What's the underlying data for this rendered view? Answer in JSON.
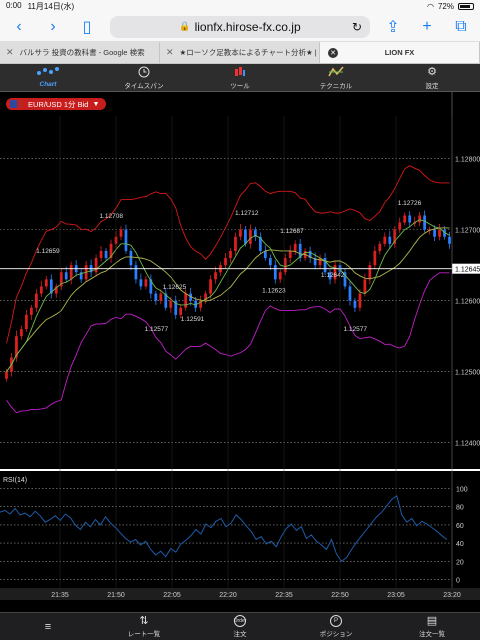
{
  "status": {
    "time": "0:00",
    "date": "11月14日(水)",
    "battery": "72%"
  },
  "browser": {
    "url": "lionfx.hirose-fx.co.jp",
    "tabs": [
      {
        "label": "バルサラ 投資の教科書 - Google 検索"
      },
      {
        "label": "★ローソク足教本によるチャート分析★ | F..."
      },
      {
        "label": "LION FX"
      }
    ]
  },
  "nav": {
    "items": [
      {
        "label": "Chart",
        "icon": "chart-icon"
      },
      {
        "label": "タイムスパン",
        "icon": "timespan-icon"
      },
      {
        "label": "ツール",
        "icon": "tool-icon"
      },
      {
        "label": "テクニカル",
        "icon": "technical-icon"
      },
      {
        "label": "設定",
        "icon": "gear-icon"
      }
    ]
  },
  "symbol": {
    "label": "EUR/USD 1分 Bid"
  },
  "chart_data": [
    {
      "type": "candlestick",
      "title": "EUR/USD 1分 Bid",
      "ylim": [
        1.1237,
        1.1286
      ],
      "y_ticks": [
        "1.12800",
        "1.12700",
        "1.12600",
        "1.12500",
        "1.12400"
      ],
      "current_price": "1.12645",
      "x_ticks": [
        "21:35",
        "21:50",
        "22:05",
        "22:20",
        "22:35",
        "22:50",
        "23:05",
        "23:20"
      ],
      "annotations": [
        "1.12708",
        "1.12659",
        "1.12625",
        "1.12591",
        "1.12577",
        "1.12712",
        "1.12687",
        "1.12623",
        "1.12642",
        "1.12577",
        "1.12726"
      ],
      "closes": [
        1.125,
        1.1252,
        1.1255,
        1.1256,
        1.1258,
        1.1259,
        1.1261,
        1.1262,
        1.1263,
        1.1261,
        1.1262,
        1.1264,
        1.1263,
        1.1265,
        1.1264,
        1.1263,
        1.1265,
        1.1264,
        1.1266,
        1.1267,
        1.1266,
        1.1268,
        1.1269,
        1.127,
        1.1267,
        1.1265,
        1.1263,
        1.1262,
        1.1263,
        1.1261,
        1.126,
        1.1261,
        1.1259,
        1.126,
        1.1258,
        1.1259,
        1.1261,
        1.126,
        1.1259,
        1.126,
        1.1261,
        1.1263,
        1.1264,
        1.1265,
        1.1266,
        1.1267,
        1.1269,
        1.127,
        1.1268,
        1.127,
        1.1269,
        1.1267,
        1.1266,
        1.1265,
        1.1263,
        1.1264,
        1.1266,
        1.1267,
        1.1268,
        1.1266,
        1.1267,
        1.1266,
        1.1265,
        1.1266,
        1.1264,
        1.1263,
        1.1265,
        1.1264,
        1.1262,
        1.126,
        1.1259,
        1.1261,
        1.1263,
        1.1265,
        1.1267,
        1.1268,
        1.1269,
        1.1268,
        1.127,
        1.1271,
        1.1272,
        1.1271,
        1.1271,
        1.1272,
        1.127,
        1.127,
        1.1269,
        1.127,
        1.1269,
        1.1268
      ]
    },
    {
      "type": "line",
      "title": "RSI(14)",
      "ylim": [
        -5,
        105
      ],
      "y_ticks": [
        "100",
        "80",
        "60",
        "40",
        "20",
        "0"
      ],
      "values": [
        74,
        76,
        72,
        78,
        71,
        73,
        69,
        75,
        70,
        63,
        66,
        70,
        65,
        72,
        68,
        60,
        55,
        63,
        58,
        66,
        60,
        69,
        62,
        57,
        51,
        45,
        41,
        44,
        38,
        42,
        33,
        27,
        31,
        25,
        34,
        30,
        39,
        43,
        48,
        55,
        50,
        61,
        57,
        64,
        67,
        58,
        62,
        71,
        66,
        59,
        53,
        44,
        47,
        39,
        42,
        36,
        47,
        56,
        61,
        54,
        58,
        45,
        49,
        42,
        38,
        33,
        44,
        28,
        20,
        24,
        33,
        41,
        48,
        55,
        62,
        69,
        74,
        81,
        88,
        92,
        71,
        63,
        67,
        59,
        64,
        61,
        57,
        53,
        48,
        44
      ]
    }
  ],
  "bottom": {
    "items": [
      {
        "label": "",
        "icon": "menu-icon"
      },
      {
        "label": "レート一覧",
        "icon": "rate-list-icon"
      },
      {
        "label": "注文",
        "icon": "order-icon",
        "badge": "Order"
      },
      {
        "label": "ポジション",
        "icon": "position-icon",
        "badge": "P"
      },
      {
        "label": "注文一覧",
        "icon": "order-list-icon"
      }
    ]
  },
  "colors": {
    "bull": "#e02020",
    "bear": "#2a7fff",
    "bb": "#d81818",
    "bb_mid": "#b2b84a",
    "ma_short": "#6fbb4c",
    "bb_lower": "#c020c8",
    "rsi": "#1e5ca8"
  }
}
